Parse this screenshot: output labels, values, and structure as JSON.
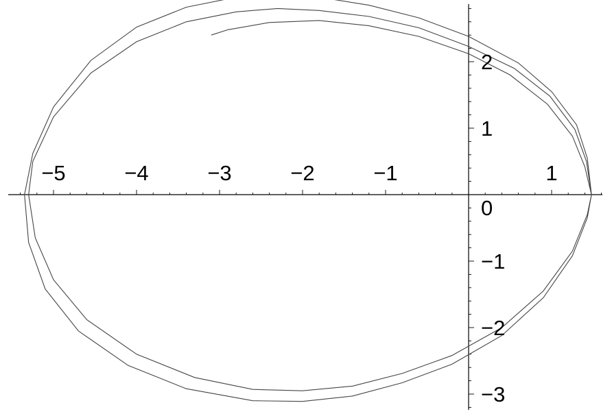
{
  "chart_data": {
    "type": "line",
    "title": "",
    "xlabel": "",
    "ylabel": "",
    "xlim": [
      -5.4,
      1.7
    ],
    "ylim": [
      -3.2,
      3.2
    ],
    "grid": false,
    "legend": "none",
    "x_ticks": [
      {
        "value": -5,
        "label": "−5"
      },
      {
        "value": -4,
        "label": "−4"
      },
      {
        "value": -3,
        "label": "−3"
      },
      {
        "value": -2,
        "label": "−2"
      },
      {
        "value": -1,
        "label": "−1"
      },
      {
        "value": 1,
        "label": "1"
      }
    ],
    "y_ticks": [
      {
        "value": 2,
        "label": "2"
      },
      {
        "value": 1,
        "label": "1"
      },
      {
        "value": -1,
        "label": "−1"
      },
      {
        "value": -2,
        "label": "−2"
      },
      {
        "value": -3,
        "label": "−3"
      }
    ],
    "origin_label": "0",
    "minor_tick_step": 0.2,
    "series": [
      {
        "color": "#444444",
        "points": [
          [
            1.48,
            0.0
          ],
          [
            1.43,
            0.55
          ],
          [
            1.3,
            1.05
          ],
          [
            1.0,
            1.55
          ],
          [
            0.6,
            1.98
          ],
          [
            0.0,
            2.38
          ],
          [
            -0.6,
            2.66
          ],
          [
            -1.2,
            2.85
          ],
          [
            -1.8,
            2.97
          ],
          [
            -2.3,
            3.01
          ],
          [
            -2.8,
            2.97
          ],
          [
            -3.4,
            2.82
          ],
          [
            -4.0,
            2.52
          ],
          [
            -4.55,
            2.02
          ],
          [
            -5.0,
            1.32
          ],
          [
            -5.25,
            0.62
          ],
          [
            -5.35,
            0.0
          ],
          [
            -5.3,
            -0.72
          ],
          [
            -5.1,
            -1.42
          ],
          [
            -4.7,
            -2.05
          ],
          [
            -4.1,
            -2.57
          ],
          [
            -3.4,
            -2.92
          ],
          [
            -2.6,
            -3.1
          ],
          [
            -2.0,
            -3.11
          ],
          [
            -1.4,
            -3.03
          ],
          [
            -0.8,
            -2.83
          ],
          [
            -0.2,
            -2.55
          ],
          [
            0.4,
            -2.12
          ],
          [
            0.9,
            -1.55
          ],
          [
            1.25,
            -0.92
          ],
          [
            1.43,
            -0.35
          ],
          [
            1.48,
            0.0
          ],
          [
            1.42,
            0.5
          ],
          [
            1.28,
            0.98
          ],
          [
            0.98,
            1.48
          ],
          [
            0.55,
            1.9
          ],
          [
            0.0,
            2.23
          ],
          [
            -0.6,
            2.51
          ],
          [
            -1.2,
            2.68
          ],
          [
            -1.8,
            2.77
          ],
          [
            -2.3,
            2.8
          ],
          [
            -2.8,
            2.75
          ],
          [
            -3.4,
            2.6
          ],
          [
            -4.0,
            2.3
          ],
          [
            -4.55,
            1.83
          ],
          [
            -5.0,
            1.17
          ],
          [
            -5.25,
            0.5
          ],
          [
            -5.3,
            0.0
          ],
          [
            -5.22,
            -0.65
          ],
          [
            -5.0,
            -1.28
          ],
          [
            -4.6,
            -1.88
          ],
          [
            -4.0,
            -2.4
          ],
          [
            -3.3,
            -2.75
          ],
          [
            -2.6,
            -2.93
          ],
          [
            -2.0,
            -2.95
          ],
          [
            -1.4,
            -2.88
          ],
          [
            -0.8,
            -2.69
          ],
          [
            -0.2,
            -2.42
          ],
          [
            0.4,
            -2.0
          ],
          [
            0.9,
            -1.45
          ],
          [
            1.25,
            -0.85
          ],
          [
            1.43,
            -0.3
          ],
          [
            1.48,
            0.0
          ],
          [
            1.4,
            0.42
          ],
          [
            1.25,
            0.88
          ],
          [
            0.95,
            1.36
          ],
          [
            0.5,
            1.8
          ],
          [
            0.0,
            2.12
          ],
          [
            -0.6,
            2.38
          ],
          [
            -1.2,
            2.54
          ],
          [
            -1.8,
            2.62
          ],
          [
            -2.4,
            2.59
          ],
          [
            -2.9,
            2.48
          ],
          [
            -3.1,
            2.4
          ]
        ]
      }
    ]
  }
}
